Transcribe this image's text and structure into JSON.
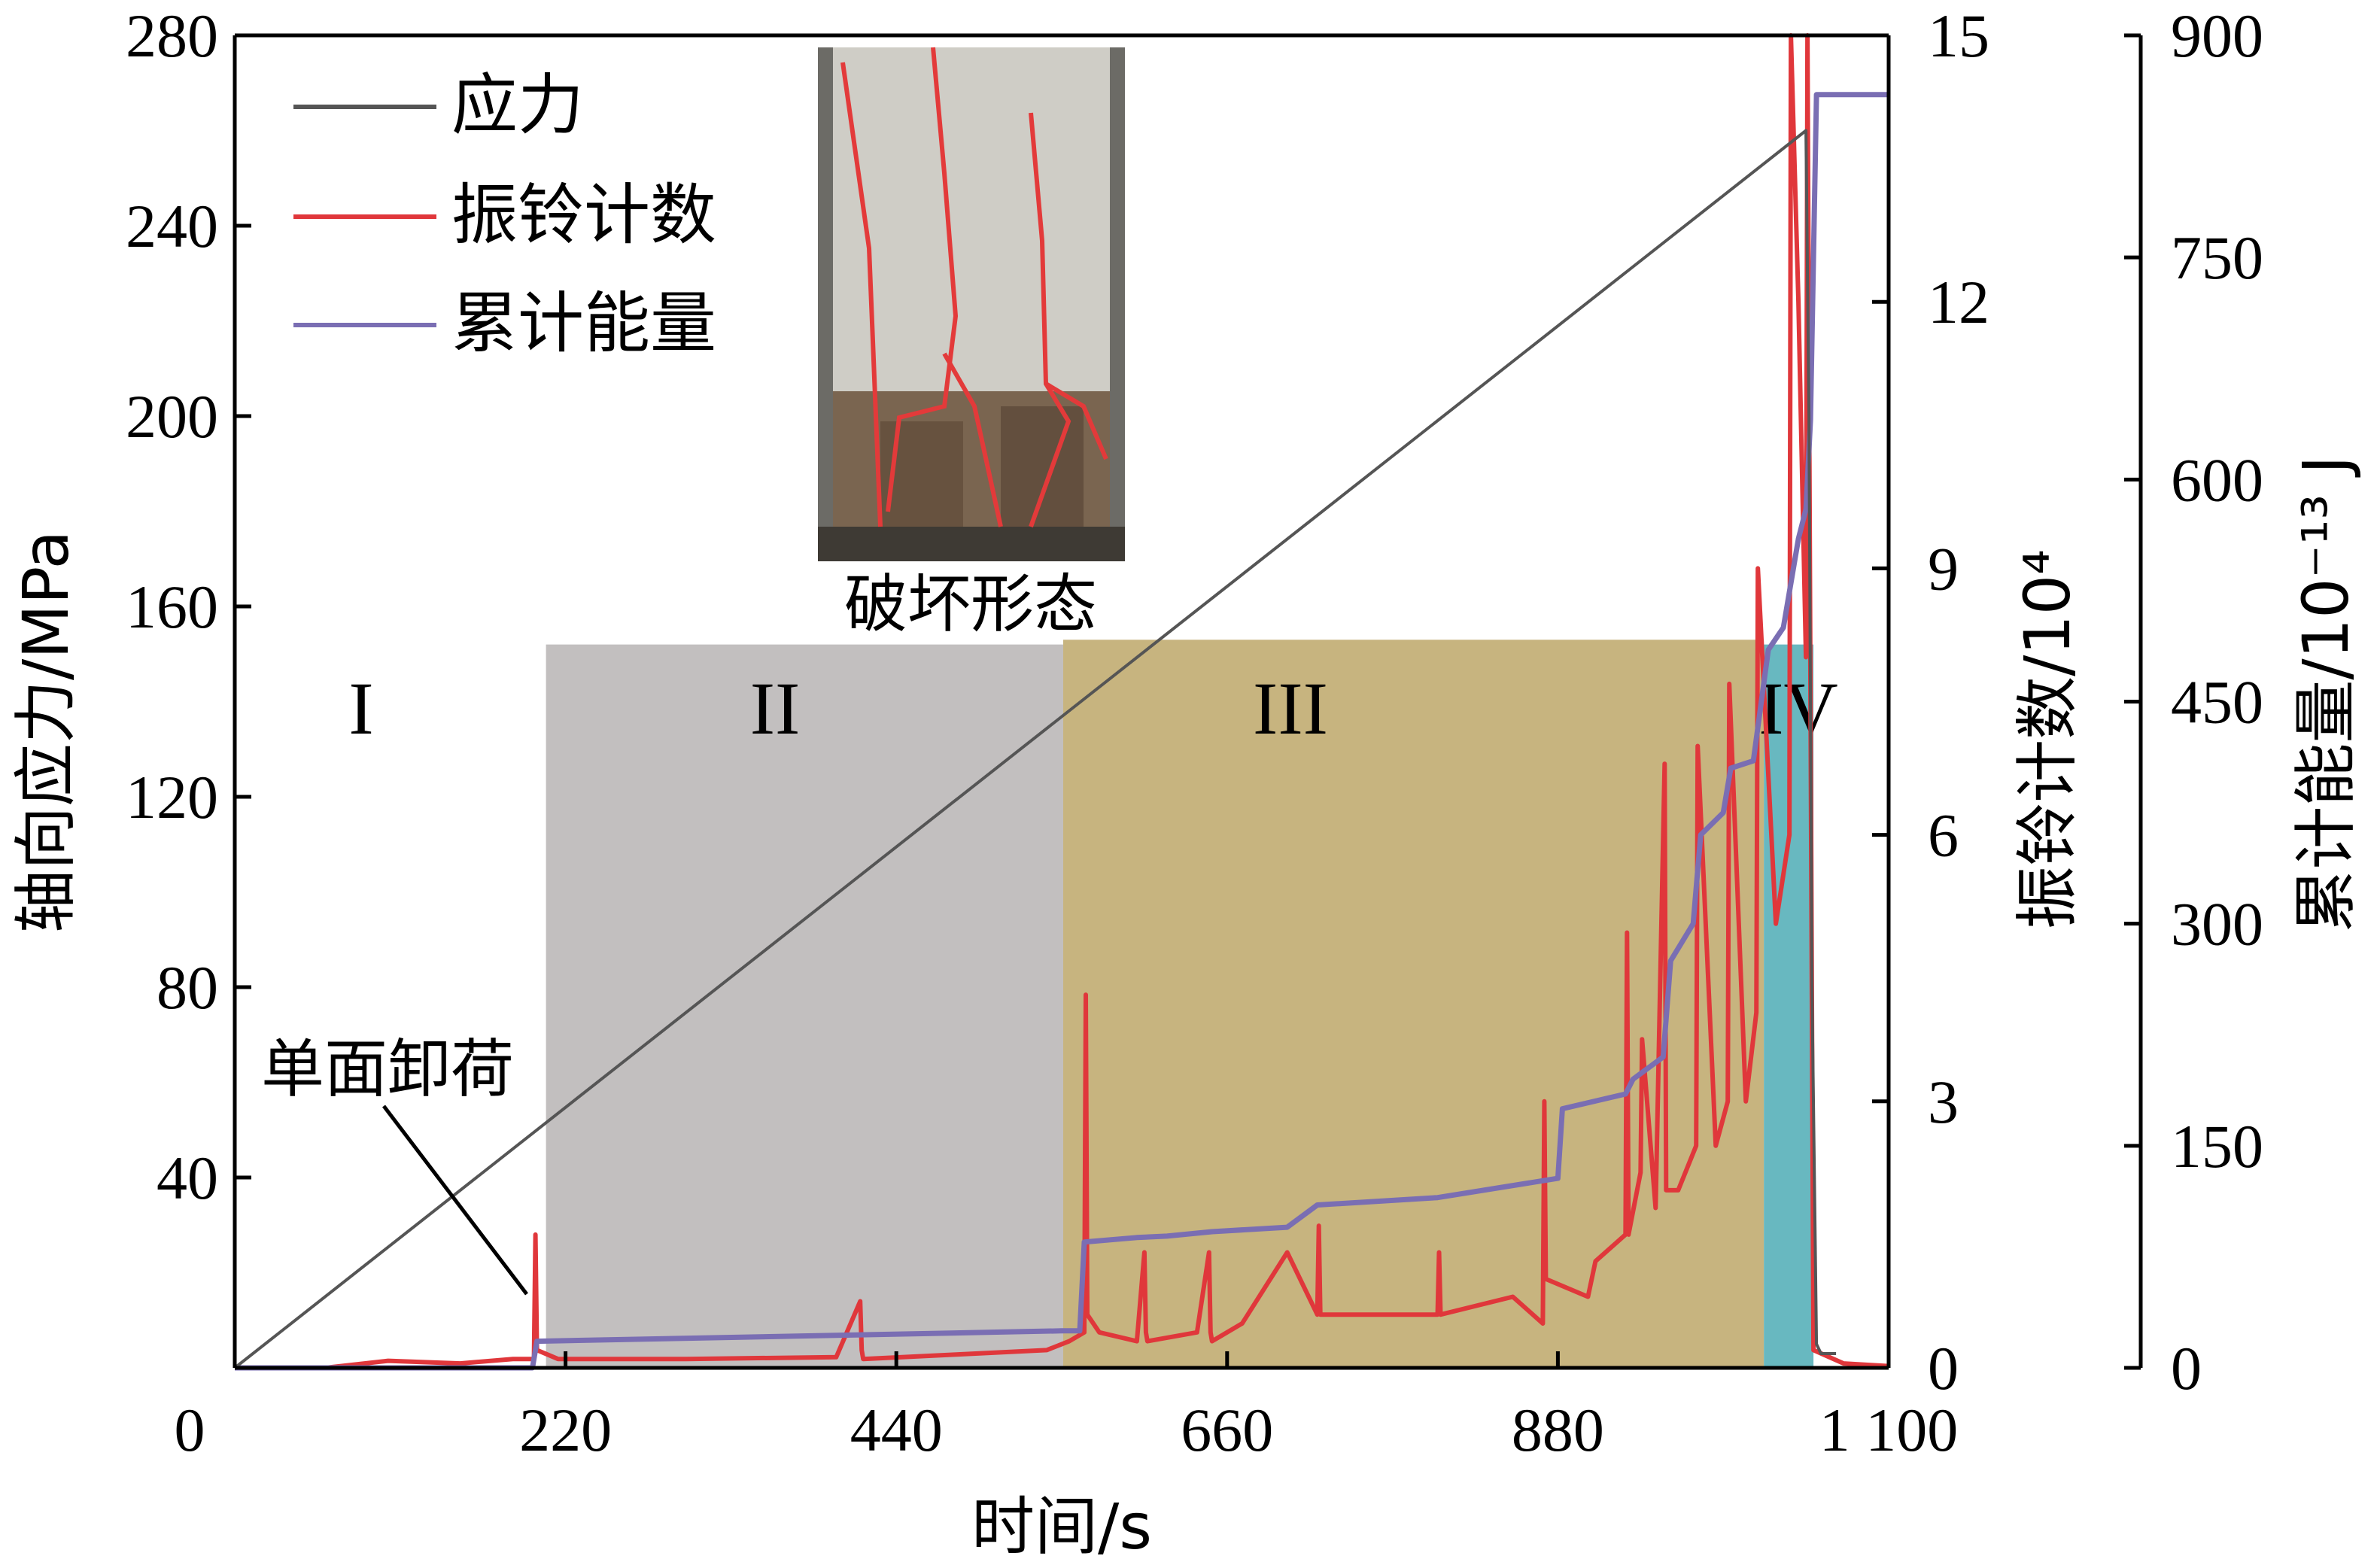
{
  "chart_data": {
    "type": "line",
    "xlabel": "时间/s",
    "xlim": [
      0,
      1100
    ],
    "x_ticks": [
      0,
      220,
      440,
      660,
      880,
      1100
    ],
    "x_tick_labels": [
      "0",
      "220",
      "440",
      "660",
      "880",
      "1 100"
    ],
    "axes": {
      "left": {
        "label": "轴向应力/MPa",
        "lim": [
          0,
          280
        ],
        "ticks": [
          40,
          80,
          120,
          160,
          200,
          240,
          280
        ],
        "tick_labels": [
          "40",
          "80",
          "120",
          "160",
          "200",
          "240",
          "280"
        ]
      },
      "right1": {
        "label": "振铃计数/10⁴",
        "lim": [
          0,
          15
        ],
        "ticks": [
          0,
          3,
          6,
          9,
          12,
          15
        ],
        "tick_labels": [
          "0",
          "3",
          "6",
          "9",
          "12",
          "15"
        ]
      },
      "right2": {
        "label": "累计能量/10⁻¹³ J",
        "lim": [
          0,
          900
        ],
        "ticks": [
          0,
          150,
          300,
          450,
          600,
          750,
          900
        ],
        "tick_labels": [
          "0",
          "150",
          "300",
          "450",
          "600",
          "750",
          "900"
        ]
      }
    },
    "legend": {
      "position": "top-left",
      "entries": [
        "应力",
        "振铃计数",
        "累计能量"
      ]
    },
    "colors": {
      "stress": "#555555",
      "ringdown": "#e0373b",
      "energy": "#7a6eb3",
      "stage2": "#c2bfbf",
      "stage3": "#c7b47f",
      "stage4": "#68b8c0"
    },
    "stages": [
      {
        "label": "I",
        "x_start": 0,
        "x_end": 207
      },
      {
        "label": "II",
        "x_start": 207,
        "x_end": 551,
        "level": 152
      },
      {
        "label": "III",
        "x_start": 551,
        "x_end": 1017,
        "level": 153
      },
      {
        "label": "IV",
        "x_start": 1017,
        "x_end": 1050,
        "level": 152
      }
    ],
    "series": [
      {
        "name": "应力",
        "axis": "left",
        "x": [
          0,
          1045,
          1047,
          1049,
          1052,
          1055,
          1065
        ],
        "y": [
          0,
          260,
          200,
          80,
          5,
          3,
          3
        ]
      },
      {
        "name": "振铃计数",
        "axis": "right1",
        "x": [
          0,
          60,
          102,
          150,
          185,
          199,
          200,
          201,
          215,
          300,
          400,
          416,
          417,
          418,
          480,
          540,
          555,
          565,
          566,
          567,
          575,
          600,
          605,
          606,
          607,
          640,
          648,
          649,
          650,
          670,
          700,
          720,
          721,
          722,
          760,
          800,
          801,
          802,
          850,
          870,
          871,
          872,
          900,
          905,
          925,
          926,
          927,
          935,
          936,
          945,
          951,
          952,
          960,
          972,
          973,
          985,
          993,
          994,
          1005,
          1012,
          1013,
          1025,
          1034,
          1035,
          1040,
          1045,
          1046,
          1050,
          1070,
          1100
        ],
        "y": [
          0,
          0,
          0.08,
          0.05,
          0.1,
          0.1,
          1.5,
          0.2,
          0.1,
          0.1,
          0.12,
          0.75,
          0.2,
          0.1,
          0.15,
          0.2,
          0.3,
          0.4,
          4.2,
          0.6,
          0.4,
          0.3,
          1.3,
          0.4,
          0.3,
          0.4,
          1.3,
          0.4,
          0.3,
          0.5,
          1.3,
          0.6,
          1.6,
          0.6,
          0.6,
          0.6,
          1.3,
          0.6,
          0.8,
          0.5,
          3.0,
          1.0,
          0.8,
          1.2,
          1.5,
          4.9,
          1.5,
          2.2,
          3.7,
          1.8,
          6.8,
          2.0,
          2.0,
          2.5,
          7.0,
          2.5,
          3.0,
          7.7,
          3.0,
          4.0,
          9.0,
          5.0,
          6.0,
          15,
          12,
          8,
          15,
          0.2,
          0.05,
          0.02
        ]
      },
      {
        "name": "累计能量",
        "axis": "right2",
        "x": [
          0,
          198,
          201,
          550,
          562,
          565,
          600,
          620,
          650,
          700,
          720,
          800,
          880,
          883,
          925,
          930,
          950,
          955,
          970,
          975,
          990,
          995,
          1010,
          1018,
          1020,
          1030,
          1040,
          1045,
          1048,
          1052,
          1100
        ],
        "y": [
          0,
          0,
          18,
          25,
          25,
          85,
          88,
          89,
          92,
          95,
          110,
          115,
          128,
          175,
          185,
          195,
          210,
          275,
          300,
          360,
          375,
          405,
          410,
          470,
          485,
          500,
          560,
          580,
          640,
          860,
          860
        ]
      }
    ],
    "annotations": [
      {
        "text": "单面卸荷",
        "points_to": {
          "x": 200,
          "y": 5
        }
      },
      {
        "text": "破坏形态",
        "kind": "inset-photo-caption"
      }
    ]
  }
}
